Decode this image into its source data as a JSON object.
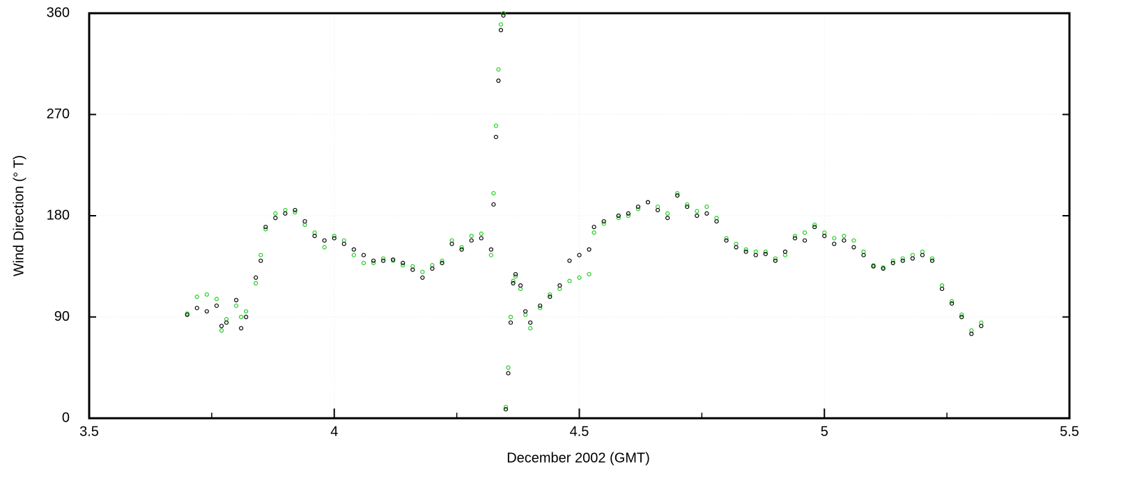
{
  "chart_data": {
    "type": "scatter",
    "xlabel": "December 2002 (GMT)",
    "ylabel": "Wind Direction (° T)",
    "xlim": [
      3.5,
      5.5
    ],
    "xticks": [
      3.5,
      4,
      4.5,
      5,
      5.5
    ],
    "minor_xticks": [
      3.75,
      4.25,
      4.75,
      5.25
    ],
    "ylim": [
      0,
      360
    ],
    "yticks": [
      0,
      90,
      180,
      270,
      360
    ],
    "grid": true,
    "x": [
      3.7,
      3.72,
      3.74,
      3.76,
      3.77,
      3.78,
      3.8,
      3.81,
      3.82,
      3.84,
      3.85,
      3.86,
      3.88,
      3.9,
      3.92,
      3.94,
      3.96,
      3.98,
      4.0,
      4.02,
      4.04,
      4.06,
      4.08,
      4.1,
      4.12,
      4.14,
      4.16,
      4.18,
      4.2,
      4.22,
      4.24,
      4.26,
      4.28,
      4.3,
      4.32,
      4.325,
      4.33,
      4.335,
      4.34,
      4.345,
      4.35,
      4.355,
      4.36,
      4.365,
      4.37,
      4.38,
      4.39,
      4.4,
      4.42,
      4.44,
      4.46,
      4.48,
      4.5,
      4.52,
      4.53,
      4.55,
      4.58,
      4.6,
      4.62,
      4.64,
      4.66,
      4.68,
      4.7,
      4.72,
      4.74,
      4.76,
      4.78,
      4.8,
      4.82,
      4.84,
      4.86,
      4.88,
      4.9,
      4.92,
      4.94,
      4.96,
      4.98,
      5.0,
      5.02,
      5.04,
      5.06,
      5.08,
      5.1,
      5.12,
      5.14,
      5.16,
      5.18,
      5.2,
      5.22,
      5.24,
      5.26,
      5.28,
      5.3,
      5.32
    ],
    "series": [
      {
        "color": "#22cc22",
        "values": [
          93,
          108,
          110,
          106,
          78,
          88,
          100,
          90,
          95,
          120,
          145,
          168,
          182,
          185,
          183,
          172,
          165,
          152,
          162,
          158,
          145,
          138,
          138,
          142,
          140,
          136,
          135,
          130,
          136,
          140,
          158,
          152,
          162,
          164,
          145,
          200,
          260,
          310,
          350,
          360,
          10,
          45,
          90,
          122,
          126,
          115,
          92,
          80,
          98,
          110,
          115,
          122,
          125,
          128,
          165,
          173,
          178,
          180,
          186,
          192,
          188,
          182,
          200,
          190,
          184,
          188,
          178,
          160,
          155,
          150,
          148,
          148,
          142,
          145,
          162,
          165,
          172,
          165,
          160,
          162,
          158,
          148,
          136,
          134,
          140,
          142,
          145,
          148,
          142,
          118,
          104,
          92,
          78,
          85
        ]
      },
      {
        "color": "#000000",
        "values": [
          92,
          98,
          95,
          100,
          82,
          85,
          105,
          80,
          90,
          125,
          140,
          170,
          178,
          182,
          185,
          175,
          162,
          158,
          160,
          155,
          150,
          145,
          140,
          140,
          141,
          138,
          132,
          125,
          133,
          138,
          155,
          150,
          158,
          160,
          150,
          190,
          250,
          300,
          345,
          358,
          8,
          40,
          85,
          120,
          128,
          118,
          95,
          85,
          100,
          108,
          118,
          140,
          145,
          150,
          170,
          175,
          180,
          182,
          188,
          192,
          185,
          178,
          198,
          188,
          180,
          182,
          175,
          158,
          152,
          148,
          145,
          146,
          140,
          148,
          160,
          158,
          170,
          162,
          155,
          158,
          152,
          145,
          135,
          133,
          138,
          140,
          142,
          145,
          140,
          115,
          102,
          90,
          75,
          82
        ]
      }
    ]
  }
}
